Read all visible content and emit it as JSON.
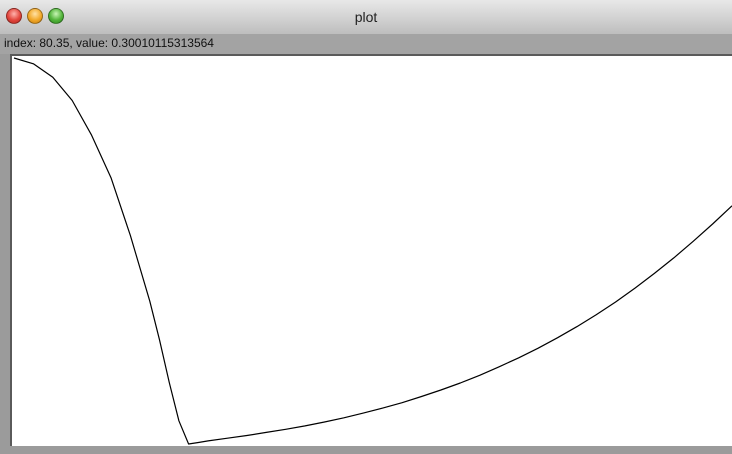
{
  "window": {
    "title": "plot"
  },
  "status": {
    "readout": "index: 80.35, value: 0.30010115313564"
  },
  "chart_data": {
    "type": "line",
    "title": "",
    "xlabel": "",
    "ylabel": "",
    "grid": false,
    "legend": "none",
    "series": [
      {
        "color": "#000000",
        "x": [
          0,
          10,
          20,
          30,
          40,
          50,
          60,
          70,
          75,
          80,
          85,
          90,
          95,
          100,
          110,
          120,
          130,
          140,
          150,
          160,
          170,
          180,
          190,
          200,
          210,
          220,
          230,
          240,
          250,
          260,
          270,
          280,
          290,
          300,
          310,
          320,
          330,
          340,
          350,
          360,
          370
        ],
        "y": [
          1.0,
          0.985,
          0.95,
          0.89,
          0.8,
          0.69,
          0.54,
          0.37,
          0.27,
          0.16,
          0.06,
          0.0,
          0.004,
          0.008,
          0.015,
          0.022,
          0.03,
          0.038,
          0.047,
          0.057,
          0.068,
          0.08,
          0.093,
          0.107,
          0.123,
          0.14,
          0.158,
          0.178,
          0.2,
          0.223,
          0.248,
          0.275,
          0.304,
          0.335,
          0.368,
          0.404,
          0.442,
          0.482,
          0.525,
          0.57,
          0.617
        ]
      }
    ],
    "xlim": [
      0,
      370
    ],
    "ylim": [
      0,
      1.0
    ]
  }
}
